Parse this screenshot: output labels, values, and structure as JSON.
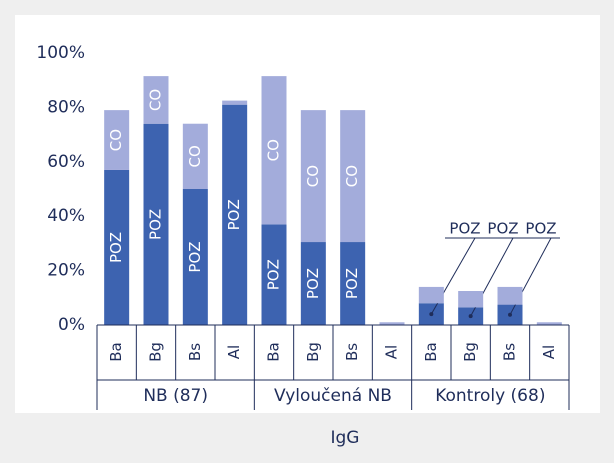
{
  "chart_data": {
    "type": "stacked_bar",
    "categories": [
      "Ba",
      "Bg",
      "Bs",
      "Al",
      "Ba",
      "Bg",
      "Bs",
      "Al",
      "Ba",
      "Bg",
      "Bs",
      "Al"
    ],
    "groups": [
      {
        "name": "NB (87)",
        "size": 4
      },
      {
        "name": "Vyloučená NB",
        "size": 4
      },
      {
        "name": "Kontroly (68)",
        "size": 4
      }
    ],
    "x_label": "IgG",
    "series": [
      {
        "name": "POZ",
        "color": "#3d63b0",
        "values": [
          57,
          74,
          50,
          81,
          37,
          30.5,
          30.5,
          0,
          8,
          6.5,
          7.5,
          0
        ]
      },
      {
        "name": "CO",
        "color": "#a3acdb",
        "values": [
          22,
          17.5,
          24,
          1.5,
          54.5,
          48.5,
          48.5,
          1,
          6,
          6,
          6.5,
          1
        ]
      }
    ],
    "ylim": [
      0,
      100
    ],
    "yticks": [
      {
        "value": 0,
        "label": "0%"
      },
      {
        "value": 20,
        "label": "20%"
      },
      {
        "value": 40,
        "label": "40%"
      },
      {
        "value": 60,
        "label": "60%"
      },
      {
        "value": 80,
        "label": "80%"
      },
      {
        "value": 100,
        "label": "100%"
      }
    ]
  }
}
